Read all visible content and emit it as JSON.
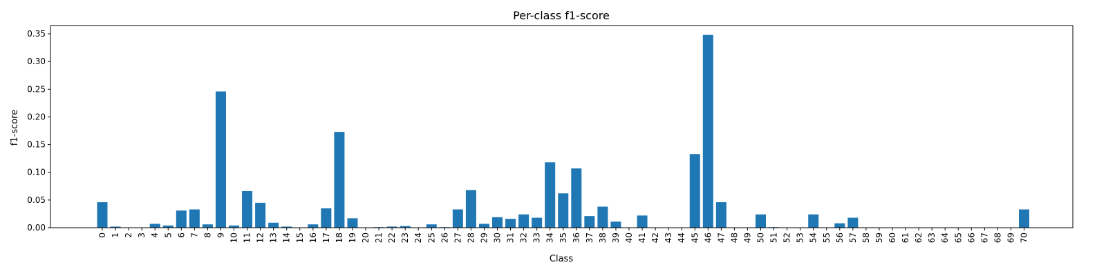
{
  "chart_data": {
    "type": "bar",
    "title": "Per-class f1-score",
    "xlabel": "Class",
    "ylabel": "f1-score",
    "ylim": [
      0,
      0.365
    ],
    "yticks": [
      "0.00",
      "0.05",
      "0.10",
      "0.15",
      "0.20",
      "0.25",
      "0.30",
      "0.35"
    ],
    "ytick_values": [
      0,
      0.05,
      0.1,
      0.15,
      0.2,
      0.25,
      0.3,
      0.35
    ],
    "grid": false,
    "bar_color": "#1f77b4",
    "categories": [
      "0",
      "1",
      "2",
      "3",
      "4",
      "5",
      "6",
      "7",
      "8",
      "9",
      "10",
      "11",
      "12",
      "13",
      "14",
      "15",
      "16",
      "17",
      "18",
      "19",
      "20",
      "21",
      "22",
      "23",
      "24",
      "25",
      "26",
      "27",
      "28",
      "29",
      "30",
      "31",
      "32",
      "33",
      "34",
      "35",
      "36",
      "37",
      "38",
      "39",
      "40",
      "41",
      "42",
      "43",
      "44",
      "45",
      "46",
      "47",
      "48",
      "49",
      "50",
      "51",
      "52",
      "53",
      "54",
      "55",
      "56",
      "57",
      "58",
      "59",
      "60",
      "61",
      "62",
      "63",
      "64",
      "65",
      "66",
      "67",
      "68",
      "69",
      "70"
    ],
    "values": [
      0.046,
      0.002,
      0,
      0,
      0.007,
      0.004,
      0.031,
      0.033,
      0.006,
      0.246,
      0.004,
      0.066,
      0.045,
      0.009,
      0.002,
      0,
      0.006,
      0.035,
      0.173,
      0.017,
      0,
      0.001,
      0.002,
      0.003,
      0,
      0.006,
      0.001,
      0.033,
      0.068,
      0.007,
      0.019,
      0.016,
      0.024,
      0.018,
      0.118,
      0.062,
      0.107,
      0.021,
      0.038,
      0.011,
      0,
      0.022,
      0,
      0,
      0,
      0.133,
      0.348,
      0.046,
      0,
      0,
      0.024,
      0.001,
      0,
      0,
      0.024,
      0,
      0.008,
      0.018,
      0,
      0,
      0,
      0,
      0,
      0,
      0,
      0,
      0,
      0,
      0,
      0,
      0.033
    ]
  }
}
